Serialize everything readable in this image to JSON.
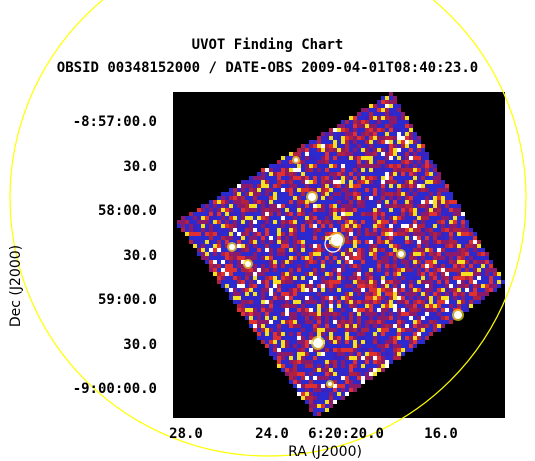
{
  "chart_data": {
    "type": "heatmap",
    "title": "UVOT Finding Chart",
    "subtitle": "OBSID 00348152000 / DATE-OBS 2009-04-01T08:40:23.0",
    "xlabel": "RA (J2000)",
    "ylabel": "Dec (J2000)",
    "x_ticks": [
      "28.0",
      "24.0",
      "6:20:20.0",
      "16.0"
    ],
    "y_ticks": [
      "-8:57:00.0",
      "30.0",
      "58:00.0",
      "30.0",
      "59:00.0",
      "30.0",
      "-9:00:00.0"
    ],
    "image_description_colors": {
      "background": "#000000",
      "low": "#2a2ad0",
      "mid": "#8b1a6a",
      "high": "#e03030",
      "peak": "#f5e020",
      "max": "#ffffff"
    },
    "overlay_circle_color": "#ffff00",
    "source_marker_color": "#ffffff"
  }
}
